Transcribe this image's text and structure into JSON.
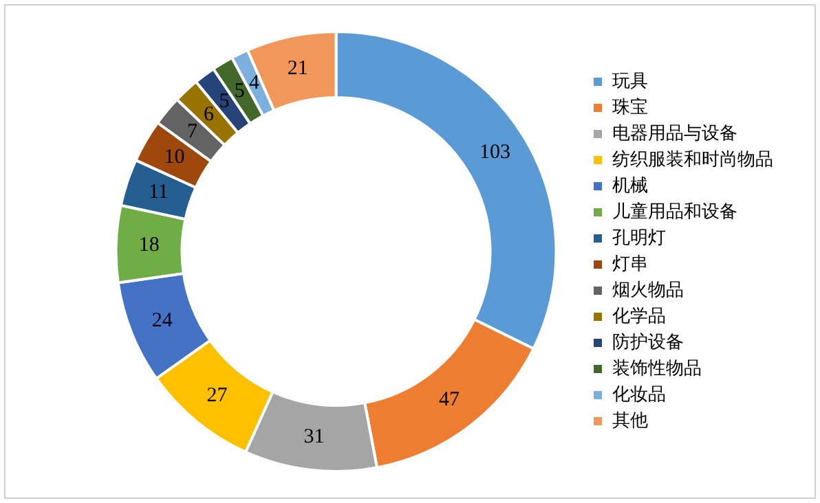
{
  "chart_data": {
    "type": "donut",
    "categories": [
      "玩具",
      "珠宝",
      "电器用品与设备",
      "纺织服装和时尚物品",
      "机械",
      "儿童用品和设备",
      "孔明灯",
      "灯串",
      "烟火物品",
      "化学品",
      "防护设备",
      "装饰性物品",
      "化妆品",
      "其他"
    ],
    "values": [
      103,
      47,
      31,
      27,
      24,
      18,
      11,
      10,
      7,
      6,
      5,
      5,
      4,
      21
    ],
    "colors": [
      "#5b9bd5",
      "#ed7d31",
      "#a5a5a5",
      "#ffc000",
      "#4472c4",
      "#70ad47",
      "#255e91",
      "#9e480e",
      "#636363",
      "#997300",
      "#264478",
      "#43682b",
      "#7cafdd",
      "#f1975a"
    ],
    "data_labels": true,
    "legend": "right"
  }
}
